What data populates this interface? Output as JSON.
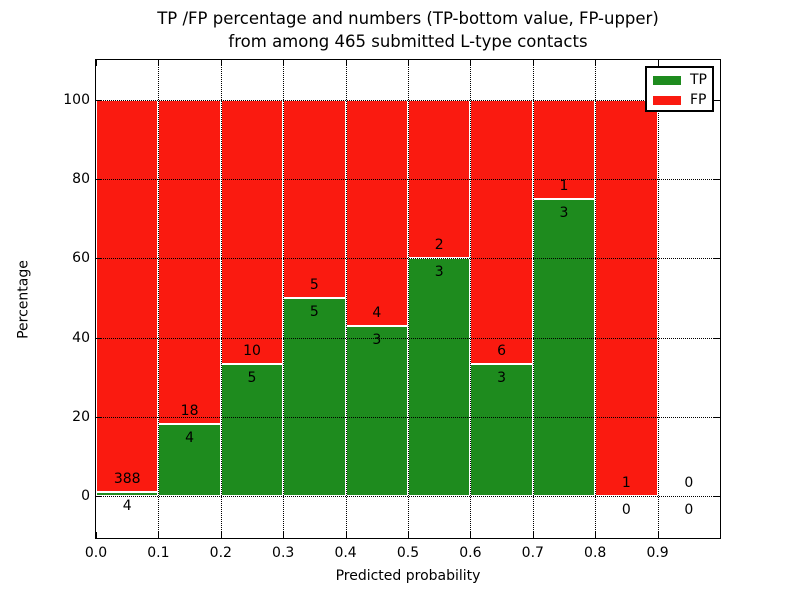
{
  "title": {
    "line1": "TP /FP percentage and numbers (TP-bottom value, FP-upper)",
    "line2": "from among 465 submitted L-type contacts"
  },
  "axes": {
    "xlabel": "Predicted probability",
    "ylabel": "Percentage"
  },
  "legend": {
    "position": "upper right",
    "entries": [
      {
        "label": "TP",
        "color": "#1e8b1e"
      },
      {
        "label": "FP",
        "color": "#fa1a10"
      }
    ]
  },
  "chart_data": {
    "type": "bar",
    "stacked": true,
    "normalized_to_percent": true,
    "title": "TP /FP percentage and numbers (TP-bottom value, FP-upper)\nfrom among 465 submitted L-type contacts",
    "xlabel": "Predicted probability",
    "ylabel": "Percentage",
    "total_contacts": 465,
    "bin_edges": [
      0.0,
      0.1,
      0.2,
      0.3,
      0.4,
      0.5,
      0.6,
      0.7,
      0.8,
      0.9,
      1.0
    ],
    "categories": [
      "0.0-0.1",
      "0.1-0.2",
      "0.2-0.3",
      "0.3-0.4",
      "0.4-0.5",
      "0.5-0.6",
      "0.6-0.7",
      "0.7-0.8",
      "0.8-0.9",
      "0.9-1.0"
    ],
    "series": [
      {
        "name": "TP",
        "color": "#1e8b1e",
        "counts": [
          4,
          4,
          5,
          5,
          3,
          3,
          3,
          3,
          0,
          0
        ]
      },
      {
        "name": "FP",
        "color": "#fa1a10",
        "counts": [
          388,
          18,
          10,
          5,
          4,
          2,
          6,
          1,
          1,
          0
        ]
      }
    ],
    "tp_percent": [
      1.02,
      18.18,
      33.33,
      50.0,
      42.86,
      60.0,
      33.33,
      75.0,
      0.0,
      0.0
    ],
    "xlim": [
      0.0,
      1.0
    ],
    "ylim": [
      -10.6,
      110.1
    ],
    "yticks": [
      0,
      20,
      40,
      60,
      80,
      100
    ],
    "ytick_labels": [
      "0",
      "20",
      "40",
      "60",
      "80",
      "100"
    ],
    "xticks": [
      0.0,
      0.1,
      0.2,
      0.3,
      0.4,
      0.5,
      0.6,
      0.7,
      0.8,
      0.9
    ],
    "xtick_labels": [
      "0.0",
      "0.1",
      "0.2",
      "0.3",
      "0.4",
      "0.5",
      "0.6",
      "0.7",
      "0.8",
      "0.9"
    ],
    "grid": true,
    "grid_style": "dotted",
    "bar_edge_color": "#ffffff"
  }
}
